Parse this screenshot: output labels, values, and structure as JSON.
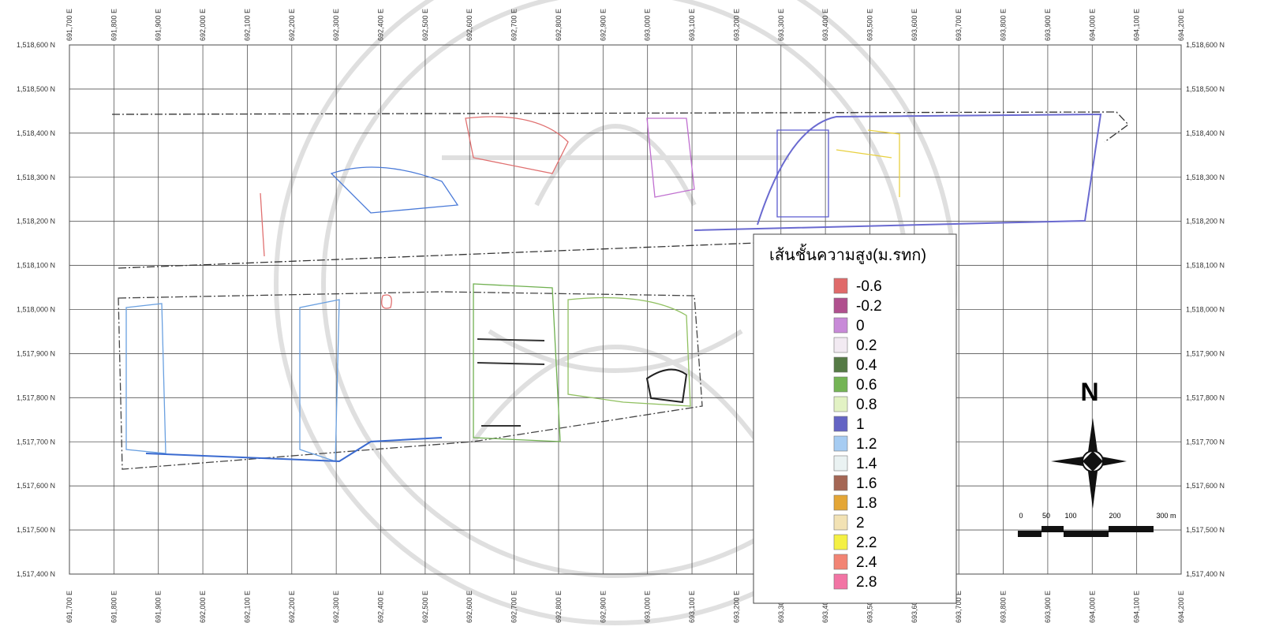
{
  "map": {
    "eastings": [
      "691,700 E",
      "691,800 E",
      "691,900 E",
      "692,000 E",
      "692,100 E",
      "692,200 E",
      "692,300 E",
      "692,400 E",
      "692,500 E",
      "692,600 E",
      "692,700 E",
      "692,800 E",
      "692,900 E",
      "693,000 E",
      "693,100 E",
      "693,200 E",
      "693,300 E",
      "693,400 E",
      "693,500 E",
      "693,600 E",
      "693,700 E",
      "693,800 E",
      "693,900 E",
      "694,000 E",
      "694,100 E",
      "694,200 E"
    ],
    "northings": [
      "1,518,600 N",
      "1,518,500 N",
      "1,518,400 N",
      "1,518,300 N",
      "1,518,200 N",
      "1,518,100 N",
      "1,518,000 N",
      "1,517,900 N",
      "1,517,800 N",
      "1,517,700 N",
      "1,517,600 N",
      "1,517,500 N",
      "1,517,400 N"
    ],
    "legend": {
      "title": "เส้นชั้นความสูง(ม.รทก)",
      "items": [
        {
          "label": "-0.6",
          "color": "#e06a6a"
        },
        {
          "label": "-0.2",
          "color": "#b0508e"
        },
        {
          "label": "0",
          "color": "#c88ad8"
        },
        {
          "label": "0.2",
          "color": "#f2eaf2"
        },
        {
          "label": "0.4",
          "color": "#557a45"
        },
        {
          "label": "0.6",
          "color": "#74b455"
        },
        {
          "label": "0.8",
          "color": "#e2f2c4"
        },
        {
          "label": "1",
          "color": "#6464c4"
        },
        {
          "label": "1.2",
          "color": "#a6ccf2"
        },
        {
          "label": "1.4",
          "color": "#eaf2f2"
        },
        {
          "label": "1.6",
          "color": "#a46654"
        },
        {
          "label": "1.8",
          "color": "#e4a636"
        },
        {
          "label": "2",
          "color": "#f2e2b4"
        },
        {
          "label": "2.2",
          "color": "#f4f044"
        },
        {
          "label": "2.4",
          "color": "#f28474"
        },
        {
          "label": "2.8",
          "color": "#f274a4"
        }
      ]
    },
    "north": "N",
    "scale": [
      "0",
      "50",
      "100",
      "200",
      "300 m"
    ]
  }
}
